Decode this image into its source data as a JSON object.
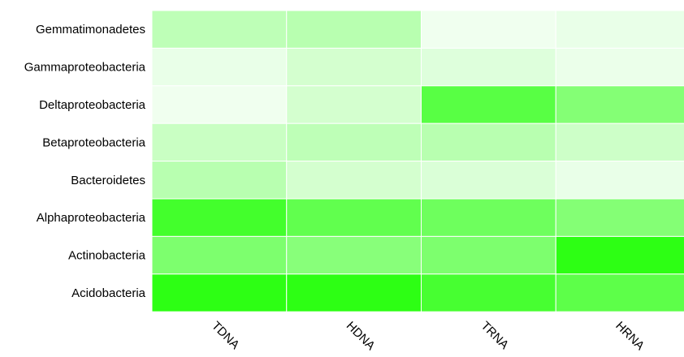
{
  "chart_data": {
    "type": "heatmap",
    "title": "",
    "xlabel": "",
    "ylabel": "",
    "columns": [
      "TDNA",
      "HDNA",
      "TRNA",
      "HRNA"
    ],
    "rows": [
      "Gemmatimonadetes",
      "Gammaproteobacteria",
      "Deltaproteobacteria",
      "Betaproteobacteria",
      "Bacteroidetes",
      "Alphaproteobacteria",
      "Actinobacteria",
      "Acidobacteria"
    ],
    "values": [
      [
        0.25,
        0.28,
        0.02,
        0.05
      ],
      [
        0.05,
        0.15,
        0.1,
        0.04
      ],
      [
        0.02,
        0.15,
        0.72,
        0.52
      ],
      [
        0.2,
        0.25,
        0.28,
        0.18
      ],
      [
        0.28,
        0.15,
        0.12,
        0.05
      ],
      [
        0.82,
        0.68,
        0.62,
        0.52
      ],
      [
        0.55,
        0.5,
        0.55,
        0.92
      ],
      [
        0.92,
        0.92,
        0.8,
        0.7
      ]
    ],
    "value_range": [
      0,
      1
    ],
    "color_low": "#f4fff4",
    "color_high": "#1cff00",
    "grid_line_color": "#ffffff",
    "legend": "none"
  }
}
